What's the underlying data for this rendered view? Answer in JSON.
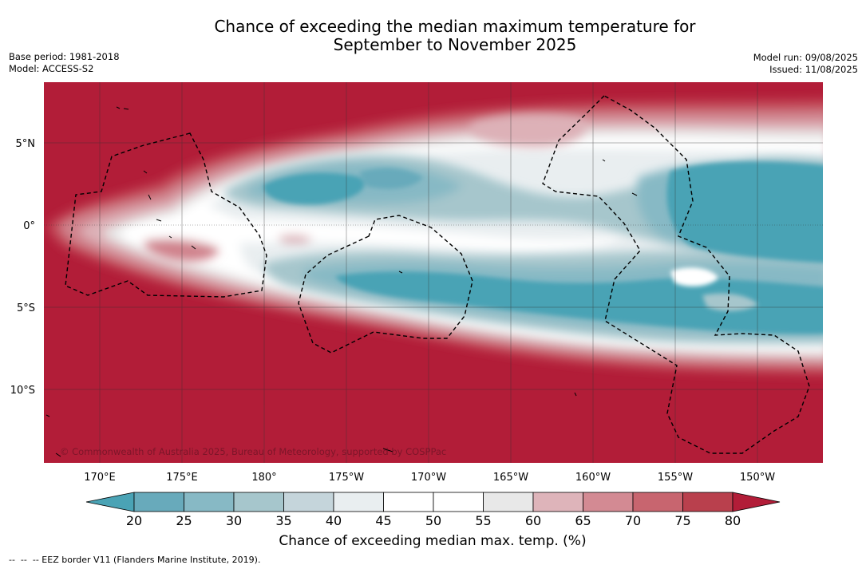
{
  "title_line1": "Chance of exceeding the median maximum temperature for",
  "title_line2": "September to November 2025",
  "base_period": "Base period: 1981-2018",
  "model": "Model: ACCESS-S2",
  "model_run": "Model run: 09/08/2025",
  "issued": "Issued: 11/08/2025",
  "copyright": "© Commonwealth of Australia 2025, Bureau of Meteorology, supported by COSPPac",
  "lat_labels": [
    "5°N",
    "0°",
    "5°S",
    "10°S"
  ],
  "lon_labels": [
    "170°E",
    "175°E",
    "180°",
    "175°W",
    "170°W",
    "165°W",
    "160°W",
    "155°W",
    "150°W"
  ],
  "colorbar": {
    "ticks": [
      "20",
      "25",
      "30",
      "35",
      "40",
      "45",
      "50",
      "55",
      "60",
      "65",
      "70",
      "75",
      "80"
    ],
    "colors": [
      "#4aa3b5",
      "#68aabb",
      "#87b9c5",
      "#a6c6cc",
      "#c5d5db",
      "#e9eef0",
      "#ffffff",
      "#ffffff",
      "#e8e8e8",
      "#deb4ba",
      "#d38a93",
      "#c8656f",
      "#b9404d",
      "#b21d38"
    ],
    "label": "Chance of exceeding median max. temp. (%)"
  },
  "legend_note": "--  --  -- EEZ border V11 (Flanders Marine Institute, 2019).",
  "map_colors": {
    "above": "#b21d38",
    "cool": "#4aa3b5",
    "border": "#000000",
    "grid": "#333333"
  }
}
